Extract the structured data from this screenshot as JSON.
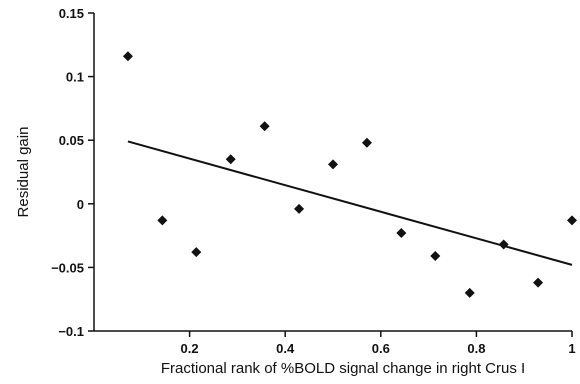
{
  "chart_data": {
    "type": "scatter",
    "xlabel": "Fractional rank of %BOLD signal change in right Crus I",
    "ylabel": "Residual gain",
    "xlim": [
      0,
      1
    ],
    "ylim": [
      -0.1,
      0.15
    ],
    "x_ticks": [
      0.2,
      0.4,
      0.6,
      0.8,
      1
    ],
    "x_tick_labels": [
      "0.2",
      "0.4",
      "0.6",
      "0.8",
      "1"
    ],
    "y_ticks": [
      -0.1,
      -0.05,
      0,
      0.05,
      0.1,
      0.15
    ],
    "y_tick_labels": [
      "−0.1",
      "−0.05",
      "0",
      "0.05",
      "0.1",
      "0.15"
    ],
    "grid": false,
    "legend": "none",
    "marker": "diamond",
    "marker_color": "#111111",
    "line_color": "#111111",
    "series": [
      {
        "x": [
          0.071,
          0.143,
          0.214,
          0.286,
          0.357,
          0.429,
          0.5,
          0.571,
          0.643,
          0.714,
          0.786,
          0.857,
          0.929,
          1.0
        ],
        "y": [
          0.116,
          -0.013,
          -0.038,
          0.035,
          0.061,
          -0.004,
          0.031,
          0.048,
          -0.023,
          -0.041,
          -0.07,
          -0.032,
          -0.062,
          -0.013
        ]
      }
    ],
    "trendline": {
      "x": [
        0.071,
        1.0
      ],
      "y": [
        0.049,
        -0.048
      ]
    }
  }
}
